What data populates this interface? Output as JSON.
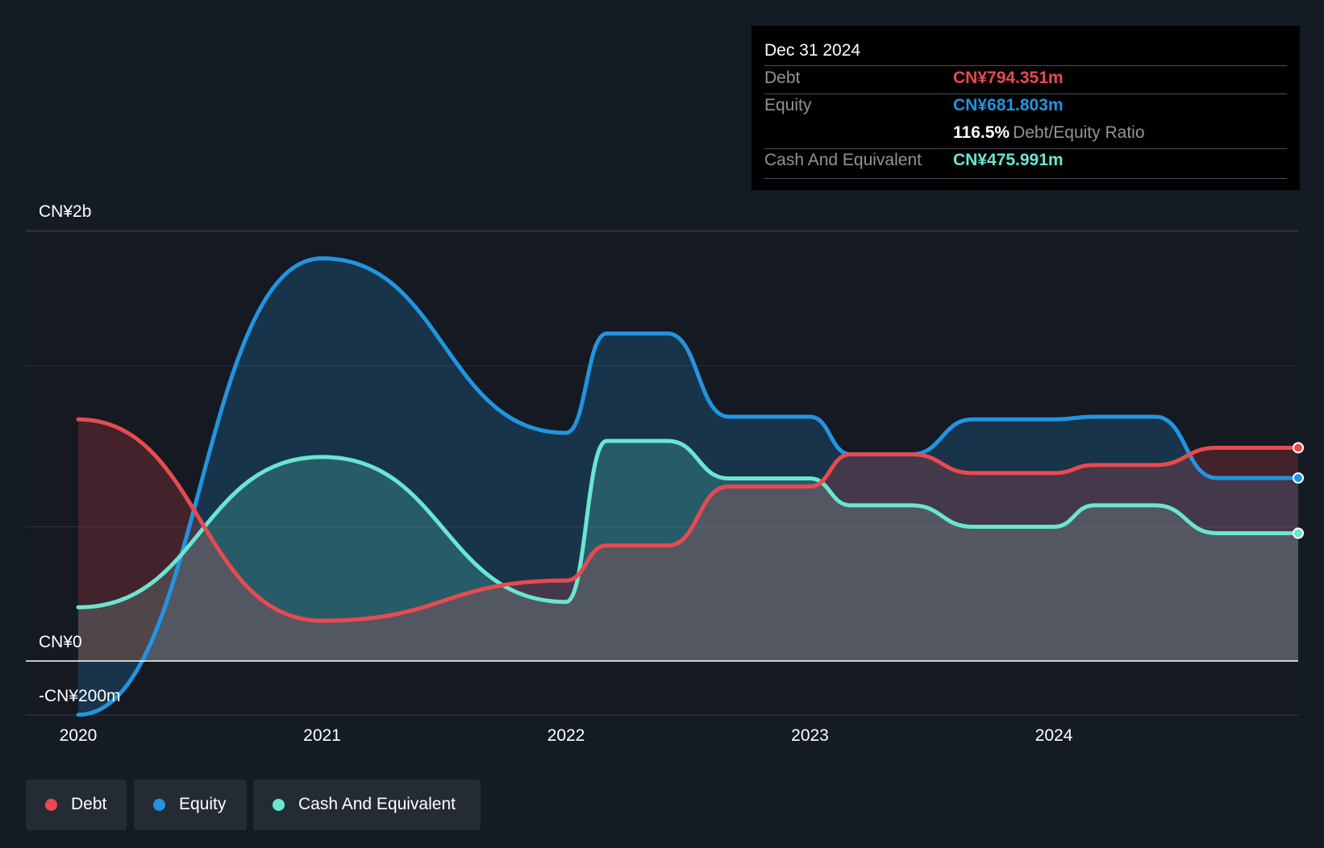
{
  "chart_data": {
    "type": "area",
    "x": [
      "2020-01",
      "2021-01",
      "2022-01",
      "2022-03",
      "2022-06",
      "2022-09",
      "2023-01",
      "2023-03",
      "2023-06",
      "2023-09",
      "2024-01",
      "2024-03",
      "2024-06",
      "2024-09",
      "2024-12"
    ],
    "series": [
      {
        "name": "Debt",
        "color": "#e84a4f",
        "values": [
          900,
          150,
          300,
          430,
          430,
          650,
          650,
          770,
          770,
          700,
          700,
          730,
          730,
          794.351,
          794.351
        ]
      },
      {
        "name": "Equity",
        "color": "#2394df",
        "values": [
          -200,
          1500,
          850,
          1220,
          1220,
          910,
          910,
          770,
          770,
          900,
          900,
          910,
          910,
          681.803,
          681.803
        ]
      },
      {
        "name": "Cash And Equivalent",
        "color": "#6ae6d0",
        "values": [
          200,
          760,
          220,
          820,
          820,
          680,
          680,
          580,
          580,
          500,
          500,
          580,
          580,
          475.991,
          475.991
        ]
      }
    ],
    "xticks": [
      "2020",
      "2021",
      "2022",
      "2023",
      "2024"
    ],
    "yticks": [
      {
        "value": 2000,
        "label": "CN¥2b"
      },
      {
        "value": 0,
        "label": "CN¥0"
      },
      {
        "value": -200,
        "label": "-CN¥200m"
      }
    ],
    "ylim": [
      -200,
      1600
    ],
    "grid": true,
    "legend_position": "bottom-left"
  },
  "tooltip": {
    "date": "Dec 31 2024",
    "debt_label": "Debt",
    "debt_value": "CN¥794.351m",
    "equity_label": "Equity",
    "equity_value": "CN¥681.803m",
    "ratio_value": "116.5%",
    "ratio_label": "Debt/Equity Ratio",
    "cash_label": "Cash And Equivalent",
    "cash_value": "CN¥475.991m"
  },
  "legend": {
    "debt": "Debt",
    "equity": "Equity",
    "cash": "Cash And Equivalent"
  },
  "colors": {
    "debt": "#e84a4f",
    "equity": "#2394df",
    "cash": "#6ae6d0",
    "background": "#151b24"
  }
}
